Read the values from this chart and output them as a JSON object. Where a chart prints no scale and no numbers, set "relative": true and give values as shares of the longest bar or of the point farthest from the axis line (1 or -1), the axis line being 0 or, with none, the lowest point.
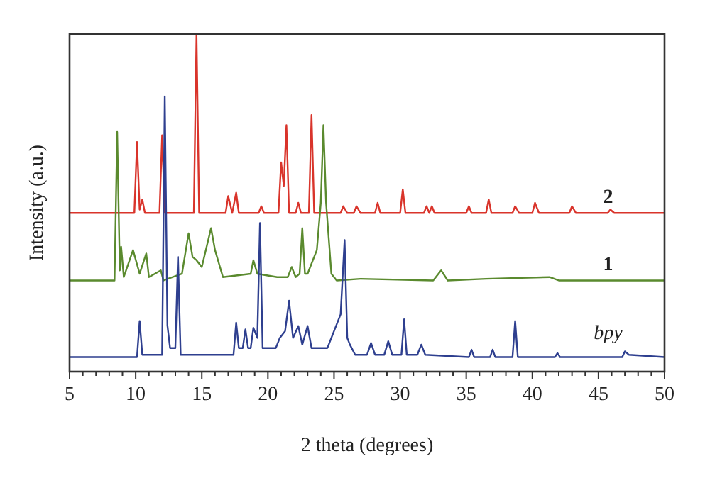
{
  "chart_data": {
    "type": "line",
    "relative": true,
    "xlabel": "2 theta (degrees)",
    "ylabel": "Intensity (a.u.)",
    "xlim": [
      5,
      50
    ],
    "xticks": [
      5,
      {
        "value": 6,
        "label": null
      },
      {
        "value": 7,
        "label": null
      },
      {
        "value": 8,
        "label": null
      },
      {
        "value": 9,
        "label": null
      },
      10,
      {
        "value": 11,
        "label": null
      },
      {
        "value": 12,
        "label": null
      },
      {
        "value": 13,
        "label": null
      },
      {
        "value": 14,
        "label": null
      },
      15,
      {
        "value": 16,
        "label": null
      },
      {
        "value": 17,
        "label": null
      },
      {
        "value": 18,
        "label": null
      },
      {
        "value": 19,
        "label": null
      },
      20,
      {
        "value": 21,
        "label": null
      },
      {
        "value": 22,
        "label": null
      },
      {
        "value": 23,
        "label": null
      },
      {
        "value": 24,
        "label": null
      },
      25,
      {
        "value": 26,
        "label": null
      },
      {
        "value": 27,
        "label": null
      },
      {
        "value": 28,
        "label": null
      },
      {
        "value": 29,
        "label": null
      },
      30,
      {
        "value": 31,
        "label": null
      },
      {
        "value": 32,
        "label": null
      },
      {
        "value": 33,
        "label": null
      },
      {
        "value": 34,
        "label": null
      },
      35,
      {
        "value": 36,
        "label": null
      },
      {
        "value": 37,
        "label": null
      },
      {
        "value": 38,
        "label": null
      },
      {
        "value": 39,
        "label": null
      },
      40,
      {
        "value": 41,
        "label": null
      },
      {
        "value": 42,
        "label": null
      },
      {
        "value": 43,
        "label": null
      },
      {
        "value": 44,
        "label": null
      },
      45,
      {
        "value": 46,
        "label": null
      },
      {
        "value": 47,
        "label": null
      },
      {
        "value": 48,
        "label": null
      },
      {
        "value": 49,
        "label": null
      },
      50
    ],
    "grid": false,
    "marker": "none",
    "line_style": "solid",
    "tick_labels": "x",
    "series": [
      {
        "name": "2",
        "color": "#d9342b",
        "x": [
          5,
          9.9,
          10.1,
          10.3,
          10.5,
          10.7,
          11.8,
          12.0,
          12.2,
          14.4,
          14.6,
          14.8,
          16.8,
          17.0,
          17.3,
          17.6,
          17.8,
          19.3,
          19.5,
          19.7,
          20.8,
          21.0,
          21.2,
          21.4,
          21.6,
          22.1,
          22.3,
          22.5,
          23.1,
          23.3,
          23.5,
          25.5,
          25.7,
          26.0,
          26.5,
          26.7,
          27.0,
          28.1,
          28.3,
          28.5,
          30.0,
          30.2,
          30.4,
          31.8,
          32.0,
          32.2,
          32.4,
          32.6,
          35.0,
          35.2,
          35.4,
          36.5,
          36.7,
          36.9,
          38.5,
          38.7,
          39.0,
          40.0,
          40.2,
          40.5,
          42.8,
          43.0,
          43.3,
          45.7,
          45.9,
          46.2,
          50
        ],
        "values": [
          0.47,
          0.47,
          0.68,
          0.48,
          0.51,
          0.47,
          0.47,
          0.7,
          0.47,
          0.47,
          1.0,
          0.47,
          0.47,
          0.52,
          0.47,
          0.53,
          0.47,
          0.47,
          0.49,
          0.47,
          0.47,
          0.62,
          0.55,
          0.73,
          0.47,
          0.47,
          0.5,
          0.47,
          0.47,
          0.76,
          0.47,
          0.47,
          0.49,
          0.47,
          0.47,
          0.49,
          0.47,
          0.47,
          0.5,
          0.47,
          0.47,
          0.54,
          0.47,
          0.47,
          0.49,
          0.47,
          0.49,
          0.47,
          0.47,
          0.49,
          0.47,
          0.47,
          0.51,
          0.47,
          0.47,
          0.49,
          0.47,
          0.47,
          0.5,
          0.47,
          0.47,
          0.49,
          0.47,
          0.47,
          0.48,
          0.47,
          0.47
        ]
      },
      {
        "name": "1",
        "color": "#5a8a2e",
        "x": [
          5,
          8.4,
          8.6,
          8.8,
          8.9,
          9.1,
          9.8,
          10.3,
          10.8,
          11.0,
          11.9,
          12.1,
          13.5,
          14.0,
          14.3,
          14.6,
          15.0,
          15.7,
          16.0,
          16.6,
          18.7,
          18.9,
          19.2,
          20.7,
          21.5,
          21.8,
          22.1,
          22.4,
          22.6,
          22.8,
          23.0,
          23.7,
          24.0,
          24.2,
          24.4,
          24.8,
          25.2,
          27.0,
          32.5,
          33.1,
          33.6,
          36.5,
          41.3,
          42,
          50
        ],
        "values": [
          0.27,
          0.27,
          0.71,
          0.3,
          0.37,
          0.28,
          0.36,
          0.29,
          0.35,
          0.28,
          0.3,
          0.27,
          0.29,
          0.41,
          0.34,
          0.33,
          0.31,
          0.425,
          0.36,
          0.28,
          0.29,
          0.33,
          0.29,
          0.28,
          0.28,
          0.31,
          0.28,
          0.29,
          0.425,
          0.29,
          0.29,
          0.36,
          0.5,
          0.73,
          0.5,
          0.29,
          0.27,
          0.275,
          0.27,
          0.3,
          0.27,
          0.275,
          0.28,
          0.27,
          0.27
        ]
      },
      {
        "name": "bpy",
        "color": "#2e3f8f",
        "x": [
          5,
          10.1,
          10.3,
          10.5,
          12.0,
          12.2,
          12.4,
          12.6,
          13.0,
          13.2,
          13.4,
          17.4,
          17.6,
          17.8,
          18.1,
          18.3,
          18.5,
          18.7,
          18.9,
          19.2,
          19.4,
          19.6,
          20.6,
          20.9,
          21.3,
          21.6,
          21.9,
          22.3,
          22.6,
          23.0,
          23.3,
          24.5,
          25.5,
          25.8,
          26.0,
          26.2,
          26.6,
          27.5,
          27.8,
          28.1,
          28.8,
          29.1,
          29.4,
          30.1,
          30.3,
          30.5,
          31.3,
          31.6,
          31.9,
          35.2,
          35.4,
          35.6,
          36.8,
          37.0,
          37.2,
          38.5,
          38.7,
          38.9,
          41.7,
          41.9,
          42.1,
          46.8,
          47.0,
          47.3,
          50
        ],
        "values": [
          0.043,
          0.043,
          0.15,
          0.05,
          0.05,
          0.815,
          0.137,
          0.07,
          0.07,
          0.34,
          0.05,
          0.05,
          0.145,
          0.07,
          0.07,
          0.125,
          0.07,
          0.07,
          0.13,
          0.1,
          0.44,
          0.07,
          0.07,
          0.1,
          0.12,
          0.21,
          0.1,
          0.135,
          0.08,
          0.135,
          0.07,
          0.07,
          0.17,
          0.39,
          0.1,
          0.08,
          0.05,
          0.05,
          0.085,
          0.05,
          0.05,
          0.09,
          0.05,
          0.05,
          0.155,
          0.05,
          0.05,
          0.08,
          0.05,
          0.043,
          0.065,
          0.043,
          0.043,
          0.065,
          0.043,
          0.043,
          0.15,
          0.043,
          0.043,
          0.055,
          0.043,
          0.043,
          0.06,
          0.05,
          0.043
        ]
      }
    ]
  }
}
